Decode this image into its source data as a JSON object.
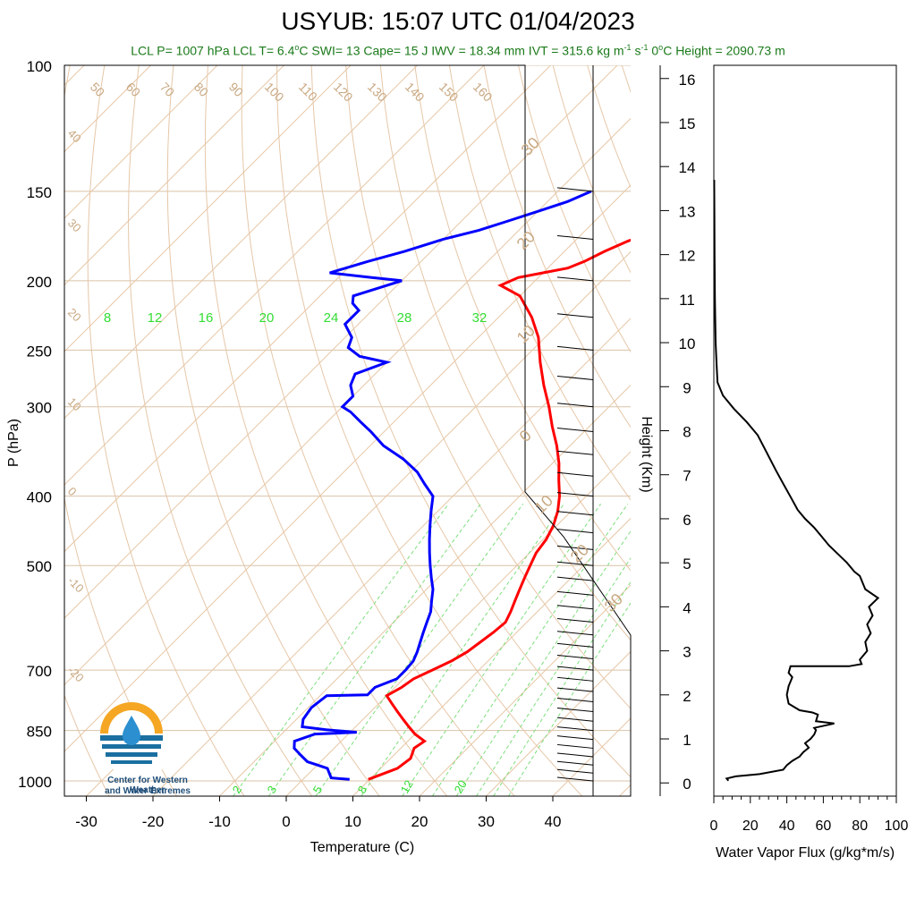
{
  "title": "USYUB: 15:07 UTC 01/04/2023",
  "subtitle": {
    "prefix": "LCL P= 1007 hPa  LCL T= 6.4",
    "lcl_t_unit": "C",
    "rest1": "  SWI= 13  Cape= 15 J  IWV = 18.34 mm  IVT = 315.6 kg m",
    "sup1": "-1",
    "rest2": " s",
    "sup2": "-1",
    "rest3": "  0",
    "rest4": "C Height = 2090.73 m"
  },
  "logo": {
    "line1": "Center for Western Weather",
    "line2": "and Water Extremes"
  },
  "chart_data": [
    {
      "type": "line",
      "name": "skew-t",
      "xlabel": "Temperature (C)",
      "ylabel": "P (hPa)",
      "xlim": [
        -33,
        52
      ],
      "ylim": [
        1050,
        100
      ],
      "x_ticks": [
        "-30",
        "-20",
        "-10",
        "0",
        "10",
        "20",
        "30",
        "40"
      ],
      "y_ticks": [
        "100",
        "150",
        "200",
        "250",
        "300",
        "400",
        "500",
        "700",
        "850",
        "1000"
      ],
      "isotherm_labels": [
        "50",
        "60",
        "70",
        "80",
        "90",
        "100",
        "110",
        "120",
        "130",
        "140",
        "150",
        "160",
        "40",
        "30",
        "20",
        "10",
        "0",
        "-10",
        "-20"
      ],
      "right_labels": [
        "30",
        "20",
        "10",
        "0",
        "10",
        "20",
        "30"
      ],
      "mixing_ratio_labels": [
        "8",
        "12",
        "16",
        "20",
        "24",
        "28",
        "32"
      ],
      "mixing_ratio_bottom": [
        "2",
        "3",
        "5",
        "8",
        "12",
        "20"
      ],
      "series": [
        {
          "name": "Temperature",
          "color": "#ff0000",
          "points": [
            [
              9.8,
              995
            ],
            [
              12.5,
              960
            ],
            [
              13,
              930
            ],
            [
              12,
              900
            ],
            [
              12.5,
              880
            ],
            [
              10,
              860
            ],
            [
              8,
              840
            ],
            [
              6,
              820
            ],
            [
              4,
              800
            ],
            [
              2,
              780
            ],
            [
              0,
              760
            ],
            [
              1,
              740
            ],
            [
              1.5,
              720
            ],
            [
              3,
              700
            ],
            [
              4.5,
              680
            ],
            [
              5.5,
              660
            ],
            [
              6,
              640
            ],
            [
              6.5,
              620
            ],
            [
              6.8,
              600
            ],
            [
              6,
              580
            ],
            [
              5,
              560
            ],
            [
              4,
              540
            ],
            [
              3,
              520
            ],
            [
              2,
              500
            ],
            [
              1,
              480
            ],
            [
              0.5,
              460
            ],
            [
              -0.5,
              440
            ],
            [
              -2,
              420
            ],
            [
              -4,
              400
            ],
            [
              -6.5,
              380
            ],
            [
              -9,
              360
            ],
            [
              -12,
              340
            ],
            [
              -15.5,
              320
            ],
            [
              -19,
              300
            ],
            [
              -23,
              280
            ],
            [
              -27,
              260
            ],
            [
              -31,
              240
            ],
            [
              -35,
              225
            ],
            [
              -40,
              210
            ],
            [
              -44.5,
              203
            ],
            [
              -43,
              198
            ],
            [
              -40,
              195
            ],
            [
              -37,
              192
            ],
            [
              -35.5,
              188
            ],
            [
              -34,
              182
            ],
            [
              -32,
              176
            ],
            [
              -30,
              172
            ],
            [
              -27,
              168
            ],
            [
              -24,
              162
            ],
            [
              -21,
              158
            ],
            [
              -18,
              154
            ],
            [
              -17,
              151
            ]
          ]
        },
        {
          "name": "Dewpoint",
          "color": "#0000ff",
          "points": [
            [
              7,
              995
            ],
            [
              4,
              990
            ],
            [
              2,
              960
            ],
            [
              0,
              950
            ],
            [
              -2,
              940
            ],
            [
              -4,
              920
            ],
            [
              -6,
              900
            ],
            [
              -7,
              880
            ],
            [
              -5,
              860
            ],
            [
              1,
              855
            ],
            [
              -4,
              848
            ],
            [
              -8,
              840
            ],
            [
              -9,
              820
            ],
            [
              -9.5,
              790
            ],
            [
              -9,
              760
            ],
            [
              -3,
              758
            ],
            [
              -3,
              740
            ],
            [
              -1,
              720
            ],
            [
              -1,
              700
            ],
            [
              -1.2,
              680
            ],
            [
              -2,
              660
            ],
            [
              -3,
              640
            ],
            [
              -4,
              620
            ],
            [
              -5,
              600
            ],
            [
              -6,
              580
            ],
            [
              -7.5,
              560
            ],
            [
              -9,
              540
            ],
            [
              -11,
              520
            ],
            [
              -13,
              500
            ],
            [
              -15,
              480
            ],
            [
              -17,
              460
            ],
            [
              -19,
              440
            ],
            [
              -21,
              420
            ],
            [
              -23,
              400
            ],
            [
              -26,
              385
            ],
            [
              -29,
              370
            ],
            [
              -33,
              355
            ],
            [
              -38,
              340
            ],
            [
              -42,
              325
            ],
            [
              -45,
              315
            ],
            [
              -48,
              305
            ],
            [
              -50,
              300
            ],
            [
              -50,
              290
            ],
            [
              -52,
              280
            ],
            [
              -53,
              270
            ],
            [
              -50,
              260
            ],
            [
              -55,
              255
            ],
            [
              -58,
              248
            ],
            [
              -59,
              240
            ],
            [
              -62,
              230
            ],
            [
              -62,
              220
            ],
            [
              -64,
              215
            ],
            [
              -65,
              210
            ],
            [
              -60,
              200
            ],
            [
              -65,
              198
            ],
            [
              -72,
              195
            ],
            [
              -68,
              188
            ],
            [
              -64,
              182
            ],
            [
              -60,
              175
            ],
            [
              -56,
              170
            ],
            [
              -53,
              165
            ],
            [
              -50,
              160
            ],
            [
              -47,
              155
            ],
            [
              -45,
              150
            ]
          ]
        }
      ]
    },
    {
      "type": "line",
      "name": "water-vapor-flux",
      "xlabel": "Water Vapor Flux (g/kg*m/s)",
      "ylabel": "Height (Km)",
      "xlim": [
        0,
        100
      ],
      "ylim": [
        -0.3,
        16.3
      ],
      "x_ticks": [
        "0",
        "20",
        "40",
        "60",
        "80",
        "100"
      ],
      "y_ticks": [
        "0",
        "1",
        "2",
        "3",
        "4",
        "5",
        "6",
        "7",
        "8",
        "9",
        "10",
        "11",
        "12",
        "13",
        "14",
        "15",
        "16"
      ],
      "series": [
        {
          "name": "",
          "color": "#000000",
          "points": [
            [
              8,
              0.05
            ],
            [
              7,
              0.1
            ],
            [
              12,
              0.15
            ],
            [
              25,
              0.2
            ],
            [
              38,
              0.3
            ],
            [
              40,
              0.4
            ],
            [
              43,
              0.5
            ],
            [
              47,
              0.6
            ],
            [
              49,
              0.7
            ],
            [
              52,
              0.8
            ],
            [
              50,
              0.9
            ],
            [
              53,
              1.0
            ],
            [
              55,
              1.1
            ],
            [
              56,
              1.2
            ],
            [
              55,
              1.25
            ],
            [
              66,
              1.35
            ],
            [
              56,
              1.4
            ],
            [
              57,
              1.55
            ],
            [
              54,
              1.6
            ],
            [
              47,
              1.65
            ],
            [
              41,
              1.8
            ],
            [
              40,
              2.0
            ],
            [
              41,
              2.2
            ],
            [
              43,
              2.4
            ],
            [
              41,
              2.5
            ],
            [
              42,
              2.65
            ],
            [
              74,
              2.65
            ],
            [
              81,
              2.7
            ],
            [
              80,
              2.8
            ],
            [
              84,
              3.0
            ],
            [
              83,
              3.2
            ],
            [
              86,
              3.4
            ],
            [
              84,
              3.6
            ],
            [
              87,
              3.8
            ],
            [
              85,
              4.0
            ],
            [
              90,
              4.2
            ],
            [
              83,
              4.4
            ],
            [
              81,
              4.6
            ],
            [
              80,
              4.7
            ],
            [
              77,
              4.8
            ],
            [
              73,
              5.0
            ],
            [
              68,
              5.2
            ],
            [
              63,
              5.4
            ],
            [
              59,
              5.6
            ],
            [
              55,
              5.8
            ],
            [
              50,
              6.0
            ],
            [
              46,
              6.2
            ],
            [
              42,
              6.5
            ],
            [
              38,
              6.8
            ],
            [
              34,
              7.1
            ],
            [
              29,
              7.5
            ],
            [
              24,
              7.9
            ],
            [
              18,
              8.2
            ],
            [
              11,
              8.5
            ],
            [
              5,
              8.8
            ],
            [
              2,
              9.1
            ],
            [
              1.5,
              9.5
            ],
            [
              1,
              10
            ],
            [
              0.6,
              11
            ],
            [
              0.4,
              12
            ],
            [
              0.3,
              13
            ],
            [
              0.2,
              13.7
            ]
          ]
        }
      ]
    }
  ]
}
